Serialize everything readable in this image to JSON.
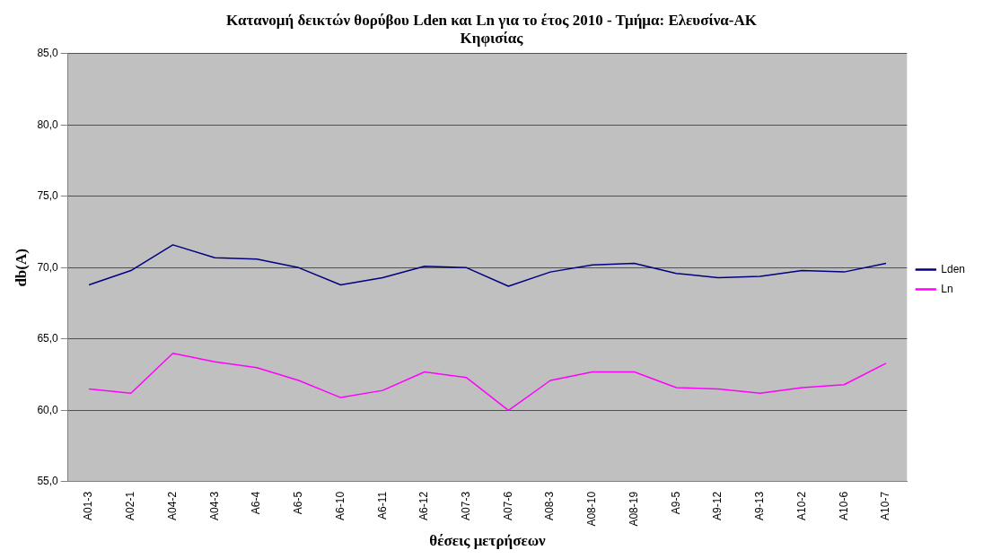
{
  "chart_data": {
    "type": "line",
    "title": [
      "Κατανομή δεικτών θορύβου Lden και Ln για το έτος 2010 - Τμήμα: Ελευσίνα-ΑΚ",
      "Κηφισίας"
    ],
    "xlabel": "θέσεις μετρήσεων",
    "ylabel": "db(A)",
    "categories": [
      "A01-3",
      "A02-1",
      "A04-2",
      "A04-3",
      "A6-4",
      "A6-5",
      "A6-10",
      "A6-11",
      "A6-12",
      "A07-3",
      "A07-6",
      "A08-3",
      "A08-10",
      "A08-19",
      "A9-5",
      "A9-12",
      "A9-13",
      "A10-2",
      "A10-6",
      "A10-7"
    ],
    "series": [
      {
        "name": "Lden",
        "color": "#000080",
        "values": [
          68.8,
          69.8,
          71.6,
          70.7,
          70.6,
          70.0,
          68.8,
          69.3,
          70.1,
          70.0,
          68.7,
          69.7,
          70.2,
          70.3,
          69.6,
          69.3,
          69.4,
          69.8,
          69.7,
          70.3
        ]
      },
      {
        "name": "Ln",
        "color": "#ff00ff",
        "values": [
          61.5,
          61.2,
          64.0,
          63.4,
          63.0,
          62.1,
          60.9,
          61.4,
          62.7,
          62.3,
          60.0,
          62.1,
          62.7,
          62.7,
          61.6,
          61.5,
          61.2,
          61.6,
          61.8,
          63.3
        ]
      }
    ],
    "ylim": [
      55,
      85
    ],
    "yticks": [
      {
        "value": 55,
        "label": "55,0"
      },
      {
        "value": 60,
        "label": "60,0"
      },
      {
        "value": 65,
        "label": "65,0"
      },
      {
        "value": 70,
        "label": "70,0"
      },
      {
        "value": 75,
        "label": "75,0"
      },
      {
        "value": 80,
        "label": "80,0"
      },
      {
        "value": 85,
        "label": "85,0"
      }
    ],
    "grid": "y",
    "legend": "right",
    "marker": "none",
    "line_style": "solid"
  }
}
